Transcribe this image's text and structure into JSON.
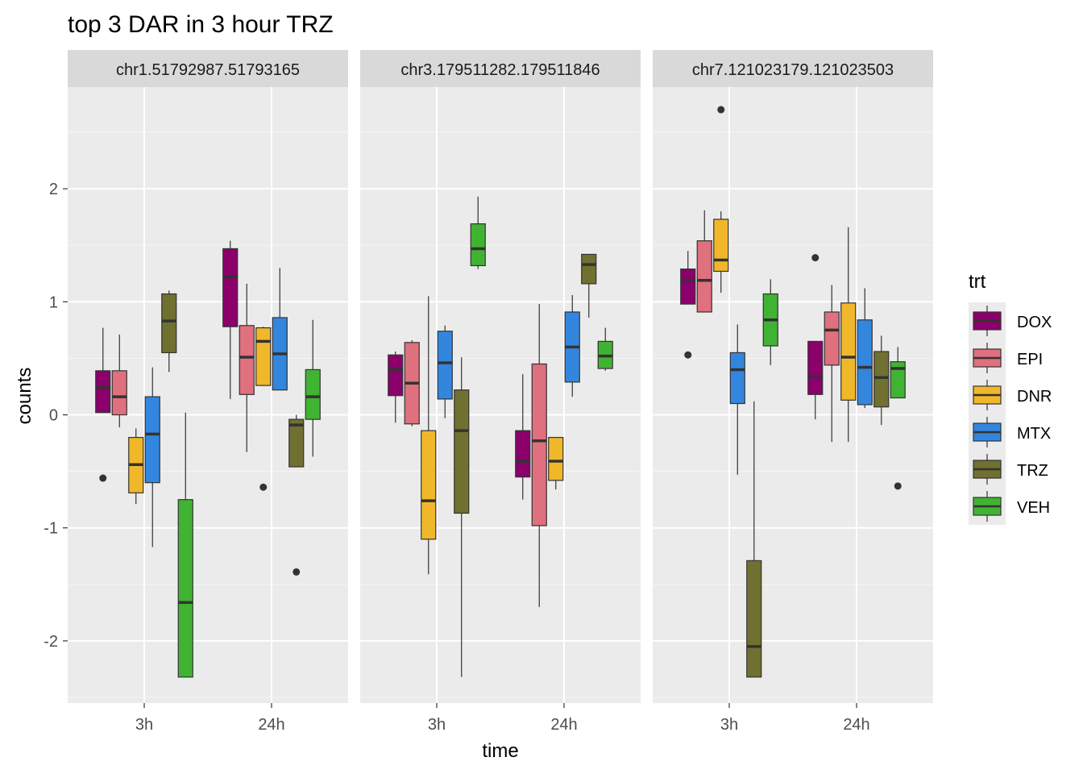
{
  "chart_data": {
    "type": "boxplot",
    "title": "top 3 DAR in 3 hour TRZ",
    "xlabel": "time",
    "ylabel": "counts",
    "ylim": [
      -2.55,
      2.9
    ],
    "yticks": [
      -2,
      -1,
      0,
      1,
      2
    ],
    "categories": [
      "3h",
      "24h"
    ],
    "legend": {
      "title": "trt",
      "position": "right",
      "items": [
        {
          "name": "DOX",
          "color": "#8B006B"
        },
        {
          "name": "EPI",
          "color": "#DF707E"
        },
        {
          "name": "DNR",
          "color": "#F1B72B"
        },
        {
          "name": "MTX",
          "color": "#3386DD"
        },
        {
          "name": "TRZ",
          "color": "#707031"
        },
        {
          "name": "VEH",
          "color": "#41B333"
        }
      ]
    },
    "panels": [
      {
        "title": "chr1.51792987.51793165",
        "groups": [
          {
            "time": "3h",
            "boxes": [
              {
                "trt": "DOX",
                "whisker_low": 0.02,
                "q1": 0.02,
                "median": 0.24,
                "q3": 0.39,
                "whisker_high": 0.77,
                "outliers": [
                  -0.56
                ]
              },
              {
                "trt": "EPI",
                "whisker_low": -0.11,
                "q1": 0.0,
                "median": 0.16,
                "q3": 0.39,
                "whisker_high": 0.71,
                "outliers": []
              },
              {
                "trt": "DNR",
                "whisker_low": -0.79,
                "q1": -0.69,
                "median": -0.44,
                "q3": -0.2,
                "whisker_high": -0.12,
                "outliers": []
              },
              {
                "trt": "MTX",
                "whisker_low": -1.17,
                "q1": -0.6,
                "median": -0.17,
                "q3": 0.16,
                "whisker_high": 0.42,
                "outliers": []
              },
              {
                "trt": "TRZ",
                "whisker_low": 0.38,
                "q1": 0.55,
                "median": 0.83,
                "q3": 1.07,
                "whisker_high": 1.1,
                "outliers": []
              },
              {
                "trt": "VEH",
                "whisker_low": -2.32,
                "q1": -2.32,
                "median": -1.66,
                "q3": -0.75,
                "whisker_high": 0.02,
                "outliers": []
              }
            ]
          },
          {
            "time": "24h",
            "boxes": [
              {
                "trt": "DOX",
                "whisker_low": 0.14,
                "q1": 0.78,
                "median": 1.22,
                "q3": 1.47,
                "whisker_high": 1.54,
                "outliers": []
              },
              {
                "trt": "EPI",
                "whisker_low": -0.33,
                "q1": 0.18,
                "median": 0.51,
                "q3": 0.79,
                "whisker_high": 1.16,
                "outliers": []
              },
              {
                "trt": "DNR",
                "whisker_low": 0.26,
                "q1": 0.26,
                "median": 0.65,
                "q3": 0.77,
                "whisker_high": 0.78,
                "outliers": [
                  -0.64
                ]
              },
              {
                "trt": "MTX",
                "whisker_low": 0.22,
                "q1": 0.22,
                "median": 0.54,
                "q3": 0.86,
                "whisker_high": 1.3,
                "outliers": []
              },
              {
                "trt": "TRZ",
                "whisker_low": -0.46,
                "q1": -0.46,
                "median": -0.09,
                "q3": -0.04,
                "whisker_high": 0.0,
                "outliers": [
                  -1.39
                ]
              },
              {
                "trt": "VEH",
                "whisker_low": -0.37,
                "q1": -0.04,
                "median": 0.16,
                "q3": 0.4,
                "whisker_high": 0.84,
                "outliers": []
              }
            ]
          }
        ]
      },
      {
        "title": "chr3.179511282.179511846",
        "groups": [
          {
            "time": "3h",
            "boxes": [
              {
                "trt": "DOX",
                "whisker_low": -0.07,
                "q1": 0.17,
                "median": 0.4,
                "q3": 0.53,
                "whisker_high": 0.56,
                "outliers": []
              },
              {
                "trt": "EPI",
                "whisker_low": -0.1,
                "q1": -0.08,
                "median": 0.28,
                "q3": 0.64,
                "whisker_high": 0.66,
                "outliers": []
              },
              {
                "trt": "DNR",
                "whisker_low": -1.41,
                "q1": -1.1,
                "median": -0.76,
                "q3": -0.14,
                "whisker_high": 1.05,
                "outliers": []
              },
              {
                "trt": "MTX",
                "whisker_low": -0.03,
                "q1": 0.14,
                "median": 0.46,
                "q3": 0.74,
                "whisker_high": 0.79,
                "outliers": []
              },
              {
                "trt": "TRZ",
                "whisker_low": -2.32,
                "q1": -0.87,
                "median": -0.14,
                "q3": 0.22,
                "whisker_high": 0.51,
                "outliers": []
              },
              {
                "trt": "VEH",
                "whisker_low": 1.29,
                "q1": 1.32,
                "median": 1.47,
                "q3": 1.69,
                "whisker_high": 1.93,
                "outliers": []
              }
            ]
          },
          {
            "time": "24h",
            "boxes": [
              {
                "trt": "DOX",
                "whisker_low": -0.75,
                "q1": -0.55,
                "median": -0.41,
                "q3": -0.14,
                "whisker_high": 0.36,
                "outliers": []
              },
              {
                "trt": "EPI",
                "whisker_low": -1.7,
                "q1": -0.98,
                "median": -0.23,
                "q3": 0.45,
                "whisker_high": 0.98,
                "outliers": []
              },
              {
                "trt": "DNR",
                "whisker_low": -0.66,
                "q1": -0.58,
                "median": -0.41,
                "q3": -0.2,
                "whisker_high": -0.2,
                "outliers": []
              },
              {
                "trt": "MTX",
                "whisker_low": 0.16,
                "q1": 0.29,
                "median": 0.6,
                "q3": 0.91,
                "whisker_high": 1.06,
                "outliers": []
              },
              {
                "trt": "TRZ",
                "whisker_low": 0.86,
                "q1": 1.16,
                "median": 1.33,
                "q3": 1.42,
                "whisker_high": 1.42,
                "outliers": []
              },
              {
                "trt": "VEH",
                "whisker_low": 0.39,
                "q1": 0.41,
                "median": 0.52,
                "q3": 0.65,
                "whisker_high": 0.77,
                "outliers": []
              }
            ]
          }
        ]
      },
      {
        "title": "chr7.121023179.121023503",
        "groups": [
          {
            "time": "3h",
            "boxes": [
              {
                "trt": "DOX",
                "whisker_low": 0.98,
                "q1": 0.98,
                "median": 1.19,
                "q3": 1.29,
                "whisker_high": 1.45,
                "outliers": [
                  0.53
                ]
              },
              {
                "trt": "EPI",
                "whisker_low": 0.91,
                "q1": 0.91,
                "median": 1.19,
                "q3": 1.54,
                "whisker_high": 1.81,
                "outliers": []
              },
              {
                "trt": "DNR",
                "whisker_low": 1.08,
                "q1": 1.27,
                "median": 1.37,
                "q3": 1.73,
                "whisker_high": 1.8,
                "outliers": [
                  2.7
                ]
              },
              {
                "trt": "MTX",
                "whisker_low": -0.53,
                "q1": 0.1,
                "median": 0.4,
                "q3": 0.55,
                "whisker_high": 0.8,
                "outliers": []
              },
              {
                "trt": "TRZ",
                "whisker_low": -2.32,
                "q1": -2.32,
                "median": -2.05,
                "q3": -1.29,
                "whisker_high": 0.12,
                "outliers": []
              },
              {
                "trt": "VEH",
                "whisker_low": 0.44,
                "q1": 0.61,
                "median": 0.84,
                "q3": 1.07,
                "whisker_high": 1.2,
                "outliers": []
              }
            ]
          },
          {
            "time": "24h",
            "boxes": [
              {
                "trt": "DOX",
                "whisker_low": -0.04,
                "q1": 0.18,
                "median": 0.34,
                "q3": 0.65,
                "whisker_high": 0.65,
                "outliers": [
                  1.39
                ]
              },
              {
                "trt": "EPI",
                "whisker_low": -0.24,
                "q1": 0.44,
                "median": 0.75,
                "q3": 0.91,
                "whisker_high": 1.15,
                "outliers": []
              },
              {
                "trt": "DNR",
                "whisker_low": -0.24,
                "q1": 0.13,
                "median": 0.51,
                "q3": 0.99,
                "whisker_high": 1.66,
                "outliers": []
              },
              {
                "trt": "MTX",
                "whisker_low": 0.06,
                "q1": 0.09,
                "median": 0.42,
                "q3": 0.84,
                "whisker_high": 1.12,
                "outliers": []
              },
              {
                "trt": "TRZ",
                "whisker_low": -0.09,
                "q1": 0.07,
                "median": 0.33,
                "q3": 0.56,
                "whisker_high": 0.7,
                "outliers": []
              },
              {
                "trt": "VEH",
                "whisker_low": 0.15,
                "q1": 0.15,
                "median": 0.41,
                "q3": 0.47,
                "whisker_high": 0.6,
                "outliers": [
                  -0.63
                ]
              }
            ]
          }
        ]
      }
    ]
  }
}
